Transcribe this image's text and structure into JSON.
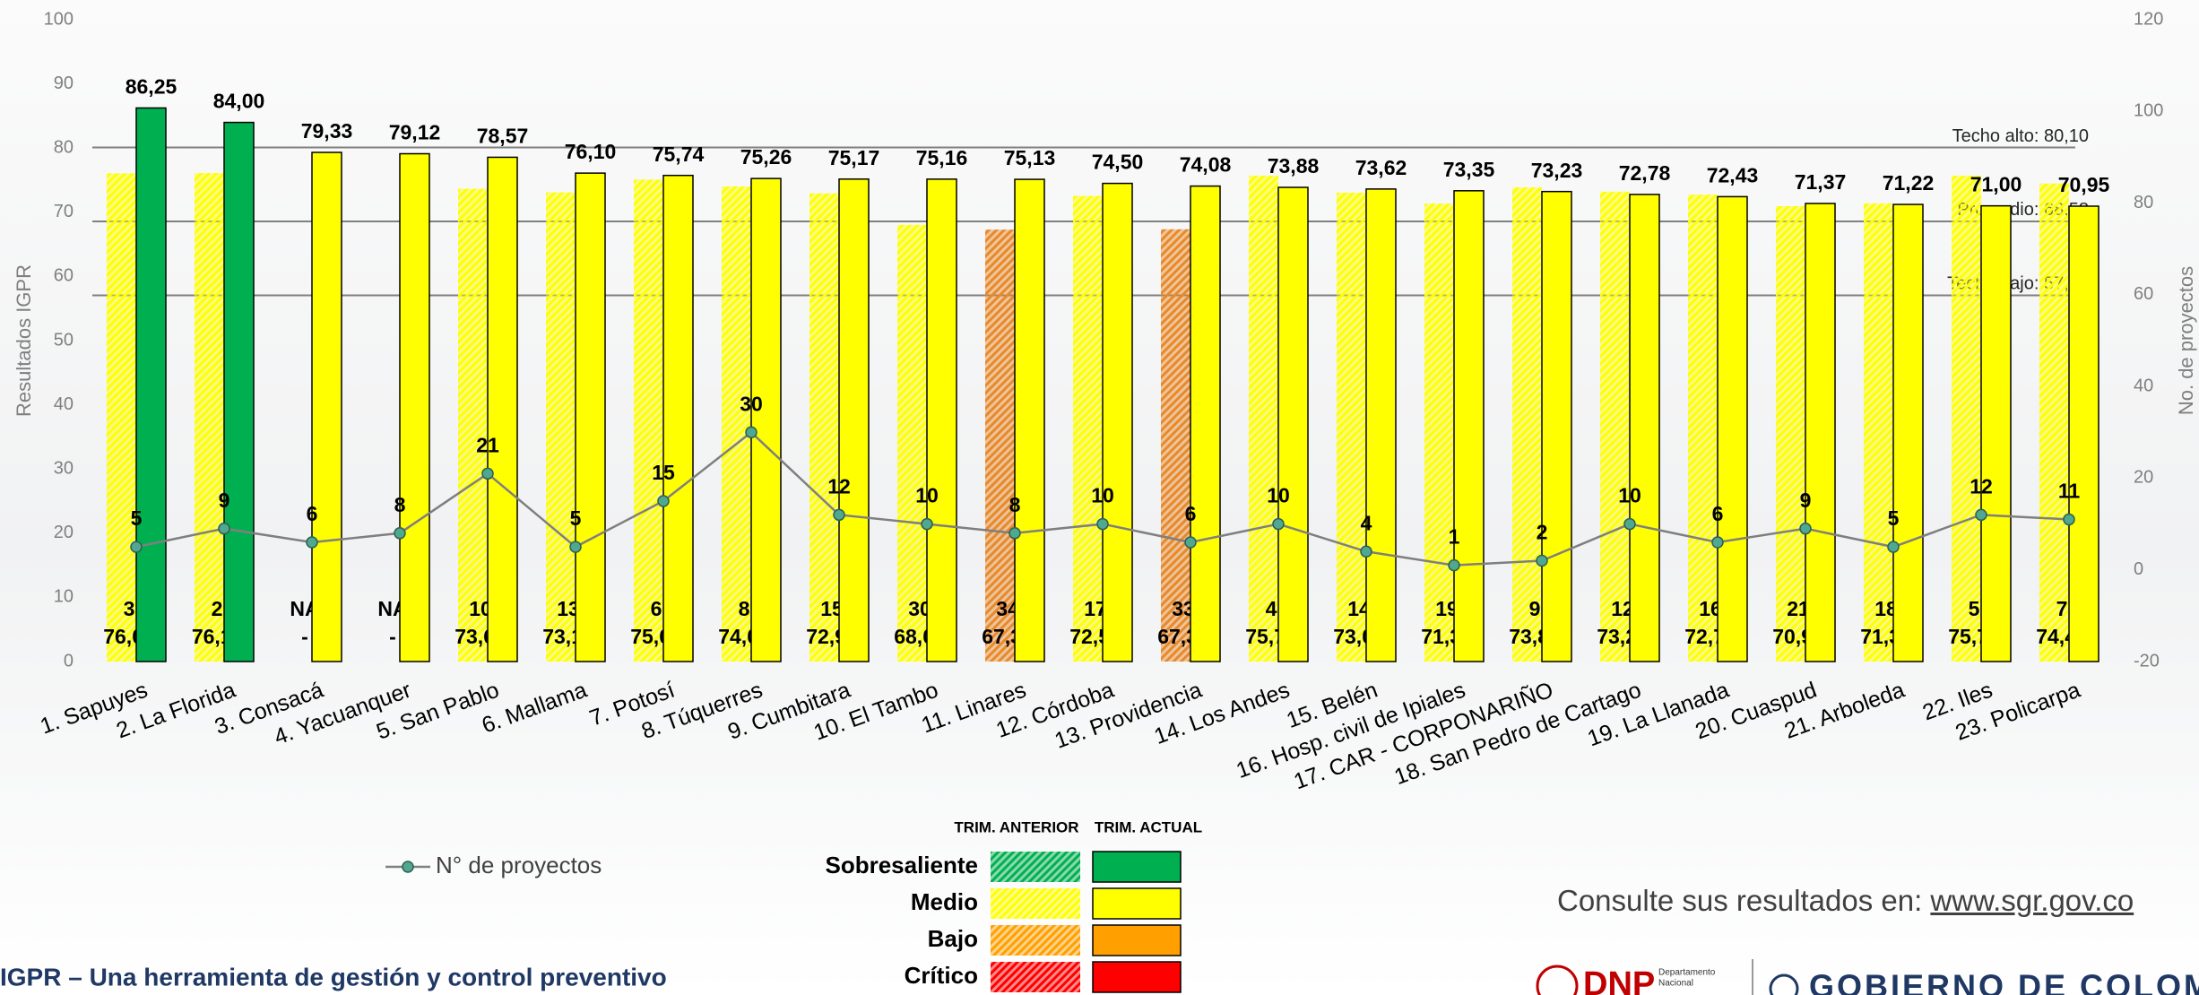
{
  "chart_data": {
    "type": "bar",
    "categories": [
      "1. Sapuyes",
      "2. La Florida",
      "3. Consacá",
      "4. Yacuanquer",
      "5. San Pablo",
      "6. Mallama",
      "7. Potosí",
      "8. Túquerres",
      "9. Cumbitara",
      "10. El Tambo",
      "11. Linares",
      "12. Córdoba",
      "13. Providencia",
      "14. Los Andes",
      "15. Belén",
      "16. Hosp. civil de Ipiales",
      "17. CAR - CORPONARIÑO",
      "18. San Pedro de Cartago",
      "19. La Llanada",
      "20. Cuaspud",
      "21. Arboleda",
      "22. Iles",
      "23. Policarpa"
    ],
    "series": [
      {
        "name": "TRIM. ANTERIOR",
        "hatched": true,
        "values": [
          76.07,
          76.11,
          null,
          null,
          73.66,
          73.1,
          75.09,
          74.02,
          72.95,
          68.04,
          67.3,
          72.55,
          67.35,
          75.71,
          73.06,
          71.35,
          73.87,
          73.21,
          72.75,
          70.95,
          71.38,
          75.7,
          74.48
        ],
        "value_labels": [
          "76,07",
          "76,11",
          "-",
          "-",
          "73,66",
          "73,10",
          "75,09",
          "74,02",
          "72,95",
          "68,04",
          "67,30",
          "72,55",
          "67,35",
          "75,71",
          "73,06",
          "71,35",
          "73,87",
          "73,21",
          "72,75",
          "70,95",
          "71,38",
          "75,70",
          "74,48"
        ],
        "colors": [
          "#ffff00",
          "#ffff00",
          "#ffff00",
          "#ffff00",
          "#ffff00",
          "#ffff00",
          "#ffff00",
          "#ffff00",
          "#ffff00",
          "#ffff00",
          "#e8892a",
          "#ffff00",
          "#e8892a",
          "#ffff00",
          "#ffff00",
          "#ffff00",
          "#ffff00",
          "#ffff00",
          "#ffff00",
          "#ffff00",
          "#ffff00",
          "#ffff00",
          "#ffff00"
        ],
        "projects": [
          3,
          2,
          null,
          null,
          10,
          13,
          6,
          8,
          15,
          30,
          34,
          17,
          33,
          4,
          14,
          19,
          9,
          12,
          16,
          21,
          18,
          5,
          7
        ],
        "projects_labels": [
          "3",
          "2",
          "NA",
          "NA",
          "10",
          "13",
          "6",
          "8",
          "15",
          "30",
          "34",
          "17",
          "33",
          "4",
          "14",
          "19",
          "9",
          "12",
          "16",
          "21",
          "18",
          "5",
          "7"
        ]
      },
      {
        "name": "TRIM. ACTUAL",
        "values": [
          86.25,
          84.0,
          79.33,
          79.12,
          78.57,
          76.1,
          75.74,
          75.26,
          75.17,
          75.16,
          75.13,
          74.5,
          74.08,
          73.88,
          73.62,
          73.35,
          73.23,
          72.78,
          72.43,
          71.37,
          71.22,
          71.0,
          70.95
        ],
        "value_labels": [
          "86,25",
          "84,00",
          "79,33",
          "79,12",
          "78,57",
          "76,10",
          "75,74",
          "75,26",
          "75,17",
          "75,16",
          "75,13",
          "74,50",
          "74,08",
          "73,88",
          "73,62",
          "73,35",
          "73,23",
          "72,78",
          "72,43",
          "71,37",
          "71,22",
          "71,00",
          "70,95"
        ],
        "colors": [
          "#00b050",
          "#00b050",
          "#ffff00",
          "#ffff00",
          "#ffff00",
          "#ffff00",
          "#ffff00",
          "#ffff00",
          "#ffff00",
          "#ffff00",
          "#ffff00",
          "#ffff00",
          "#ffff00",
          "#ffff00",
          "#ffff00",
          "#ffff00",
          "#ffff00",
          "#ffff00",
          "#ffff00",
          "#ffff00",
          "#ffff00",
          "#ffff00",
          "#ffff00"
        ]
      },
      {
        "name": "N° de proyectos",
        "type": "line",
        "axis": "y2",
        "color": "#7f7f7f",
        "marker_color": "#4fa88f",
        "values": [
          5,
          9,
          6,
          8,
          21,
          5,
          15,
          30,
          12,
          10,
          8,
          10,
          6,
          10,
          4,
          1,
          2,
          10,
          6,
          9,
          5,
          12,
          11
        ]
      }
    ],
    "ylabel": "Resultados IGPR",
    "ylim": [
      0,
      100
    ],
    "yticks": [
      0,
      10,
      20,
      30,
      40,
      50,
      60,
      70,
      80,
      90,
      100
    ],
    "y2label": "No. de proyectos",
    "y2lim": [
      -20,
      120
    ],
    "y2ticks": [
      -20,
      0,
      20,
      40,
      60,
      80,
      100,
      120
    ],
    "reference_lines": [
      {
        "value": 80.1,
        "label": "Techo alto: 80,10"
      },
      {
        "value": 68.58,
        "label": "Promedio: 68,58"
      },
      {
        "value": 57.06,
        "label": "Techo bajo: 57,06"
      }
    ],
    "levels": [
      {
        "name": "Sobresaliente",
        "color": "#00b050"
      },
      {
        "name": "Medio",
        "color": "#ffff00"
      },
      {
        "name": "Bajo",
        "color": "#ffa000"
      },
      {
        "name": "Crítico",
        "color": "#ff0000"
      }
    ]
  },
  "footer": {
    "title": "IGPR – Una herramienta de gestión y control preventivo",
    "consult": "Consulte sus resultados en:",
    "link": "www.sgr.gov.co",
    "logo_dnp": "DNP",
    "logo_dnp_sub": [
      "Departamento",
      "Nacional"
    ],
    "logo_gov": "GOBIERNO DE COLOMBIA"
  }
}
